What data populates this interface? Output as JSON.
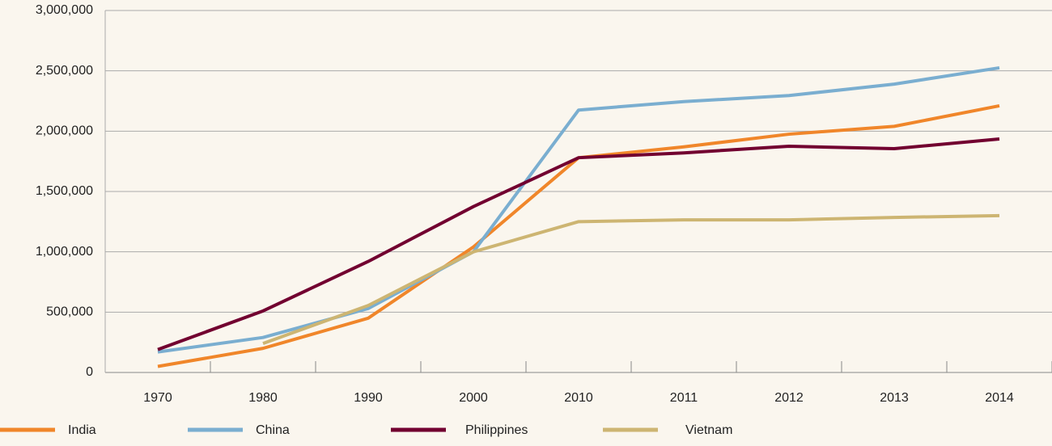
{
  "chart_data": {
    "type": "line",
    "categories": [
      "1970",
      "1980",
      "1990",
      "2000",
      "2010",
      "2011",
      "2012",
      "2013",
      "2014"
    ],
    "series": [
      {
        "name": "India",
        "color": "#f0862a",
        "values": [
          50000,
          200000,
          450000,
          1040000,
          1780000,
          1870000,
          1975000,
          2040000,
          2210000
        ]
      },
      {
        "name": "China",
        "color": "#7aaed0",
        "values": [
          170000,
          290000,
          530000,
          1000000,
          2175000,
          2245000,
          2295000,
          2390000,
          2525000
        ]
      },
      {
        "name": "Philippines",
        "color": "#720030",
        "values": [
          190000,
          510000,
          920000,
          1375000,
          1780000,
          1820000,
          1875000,
          1855000,
          1935000
        ]
      },
      {
        "name": "Vietnam",
        "color": "#cdb572",
        "values": [
          null,
          240000,
          555000,
          1000000,
          1250000,
          1265000,
          1265000,
          1285000,
          1300000
        ]
      }
    ],
    "ylim": [
      0,
      3000000
    ],
    "yticks": [
      0,
      {
        "value": 500000,
        "label": "500,000"
      },
      {
        "value": 1000000,
        "label": "1,000,000"
      },
      {
        "value": 1500000,
        "label": "1,500,000"
      },
      {
        "value": 2000000,
        "label": "2,000,000"
      },
      {
        "value": 2500000,
        "label": "2,500,000"
      },
      {
        "value": 3000000,
        "label": "3,000,000"
      }
    ],
    "grid": true,
    "legend": "bottom"
  }
}
